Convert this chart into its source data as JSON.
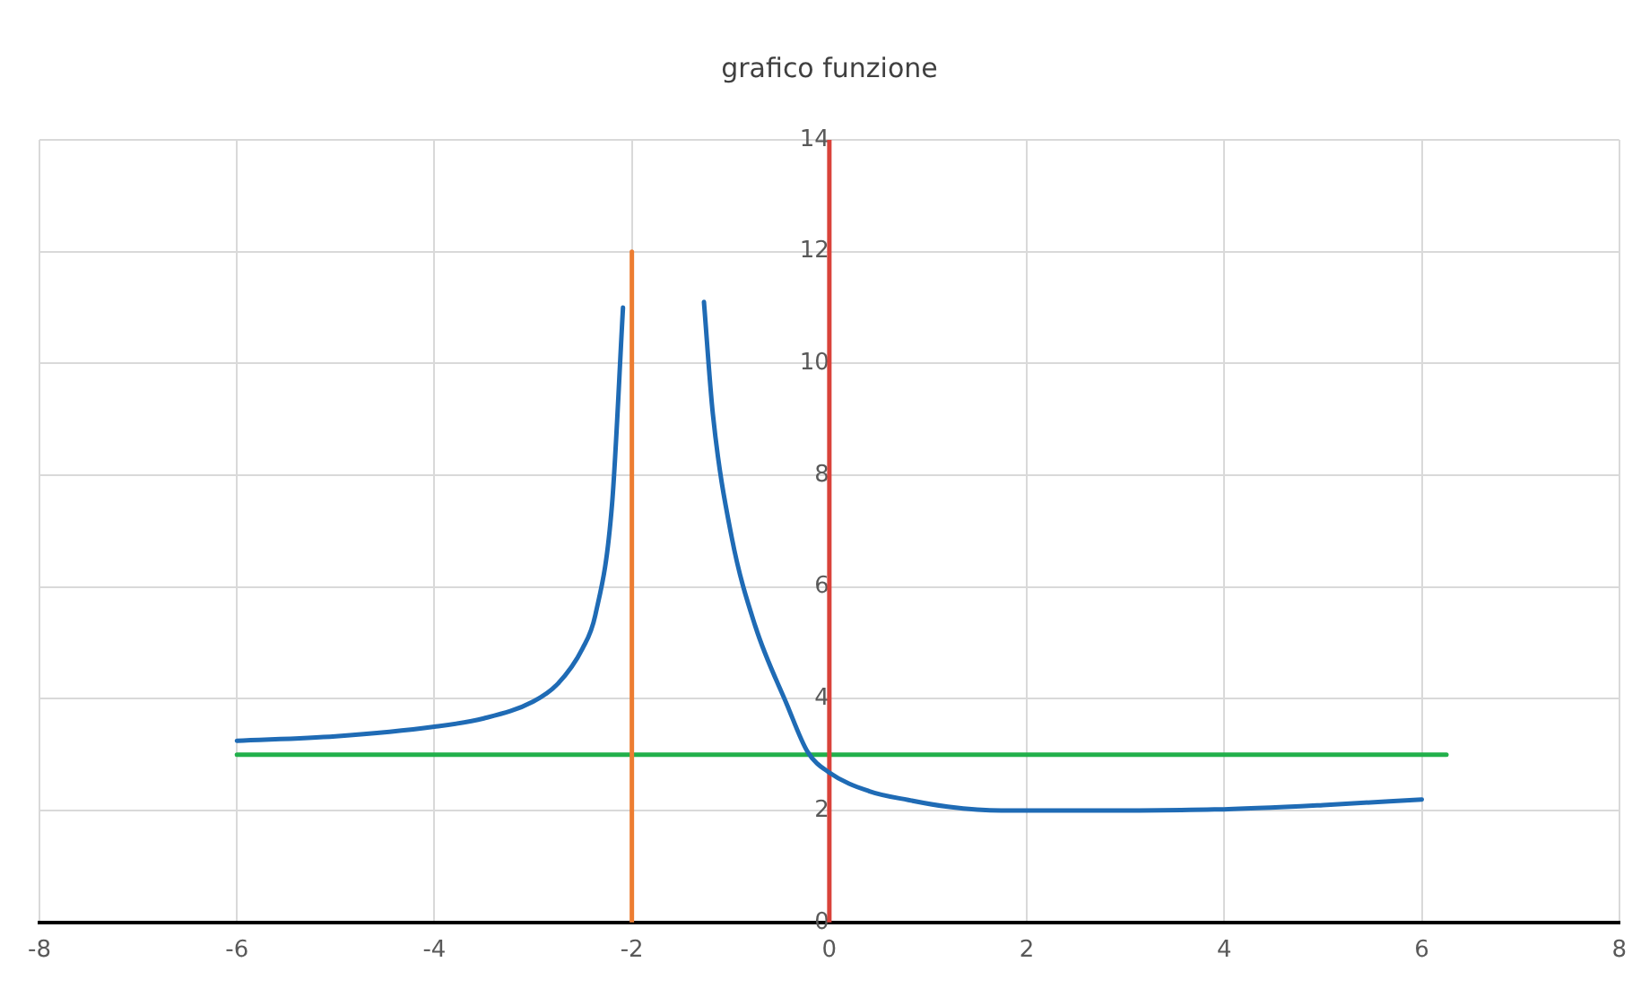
{
  "chart_data": {
    "type": "line",
    "title": "grafico funzione",
    "series": [
      {
        "color": "#1f6bb5",
        "x": [
          -6,
          -5,
          -4,
          -3.5,
          -3,
          -2.75,
          -2.5,
          -2.37,
          -2.2,
          -2.09
        ],
        "values": [
          3.25,
          3.33,
          3.5,
          3.65,
          3.95,
          4.27,
          4.9,
          5.5,
          7.5,
          11.0
        ]
      },
      {
        "color": "#1f6bb5",
        "x": [
          -1.27,
          -1.18,
          -0.99,
          -0.75,
          -0.43,
          -0.22,
          0,
          0.4,
          0.8,
          1.2,
          1.74,
          2.5,
          3.9,
          5,
          6
        ],
        "values": [
          11.1,
          9.1,
          6.9,
          5.3,
          3.9,
          3.05,
          2.68,
          2.35,
          2.19,
          2.07,
          2.0,
          2.0,
          2.02,
          2.1,
          2.2
        ]
      },
      {
        "color": "#ed7d31",
        "x": [
          -2,
          -2
        ],
        "values": [
          0,
          12
        ]
      },
      {
        "color": "#d9423a",
        "x": [
          0,
          0
        ],
        "values": [
          0,
          14
        ]
      },
      {
        "color": "#22b04b",
        "x": [
          -6,
          6.25
        ],
        "values": [
          3,
          3
        ]
      }
    ],
    "xlim": [
      -8,
      8
    ],
    "xticks": [
      -8,
      -6,
      -4,
      -2,
      0,
      2,
      4,
      6,
      8
    ],
    "ylim": [
      0,
      14
    ],
    "yticks": [
      0,
      2,
      4,
      6,
      8,
      10,
      12,
      14
    ],
    "grid": true,
    "legend": false,
    "marker": "none",
    "line_style": "solid"
  }
}
